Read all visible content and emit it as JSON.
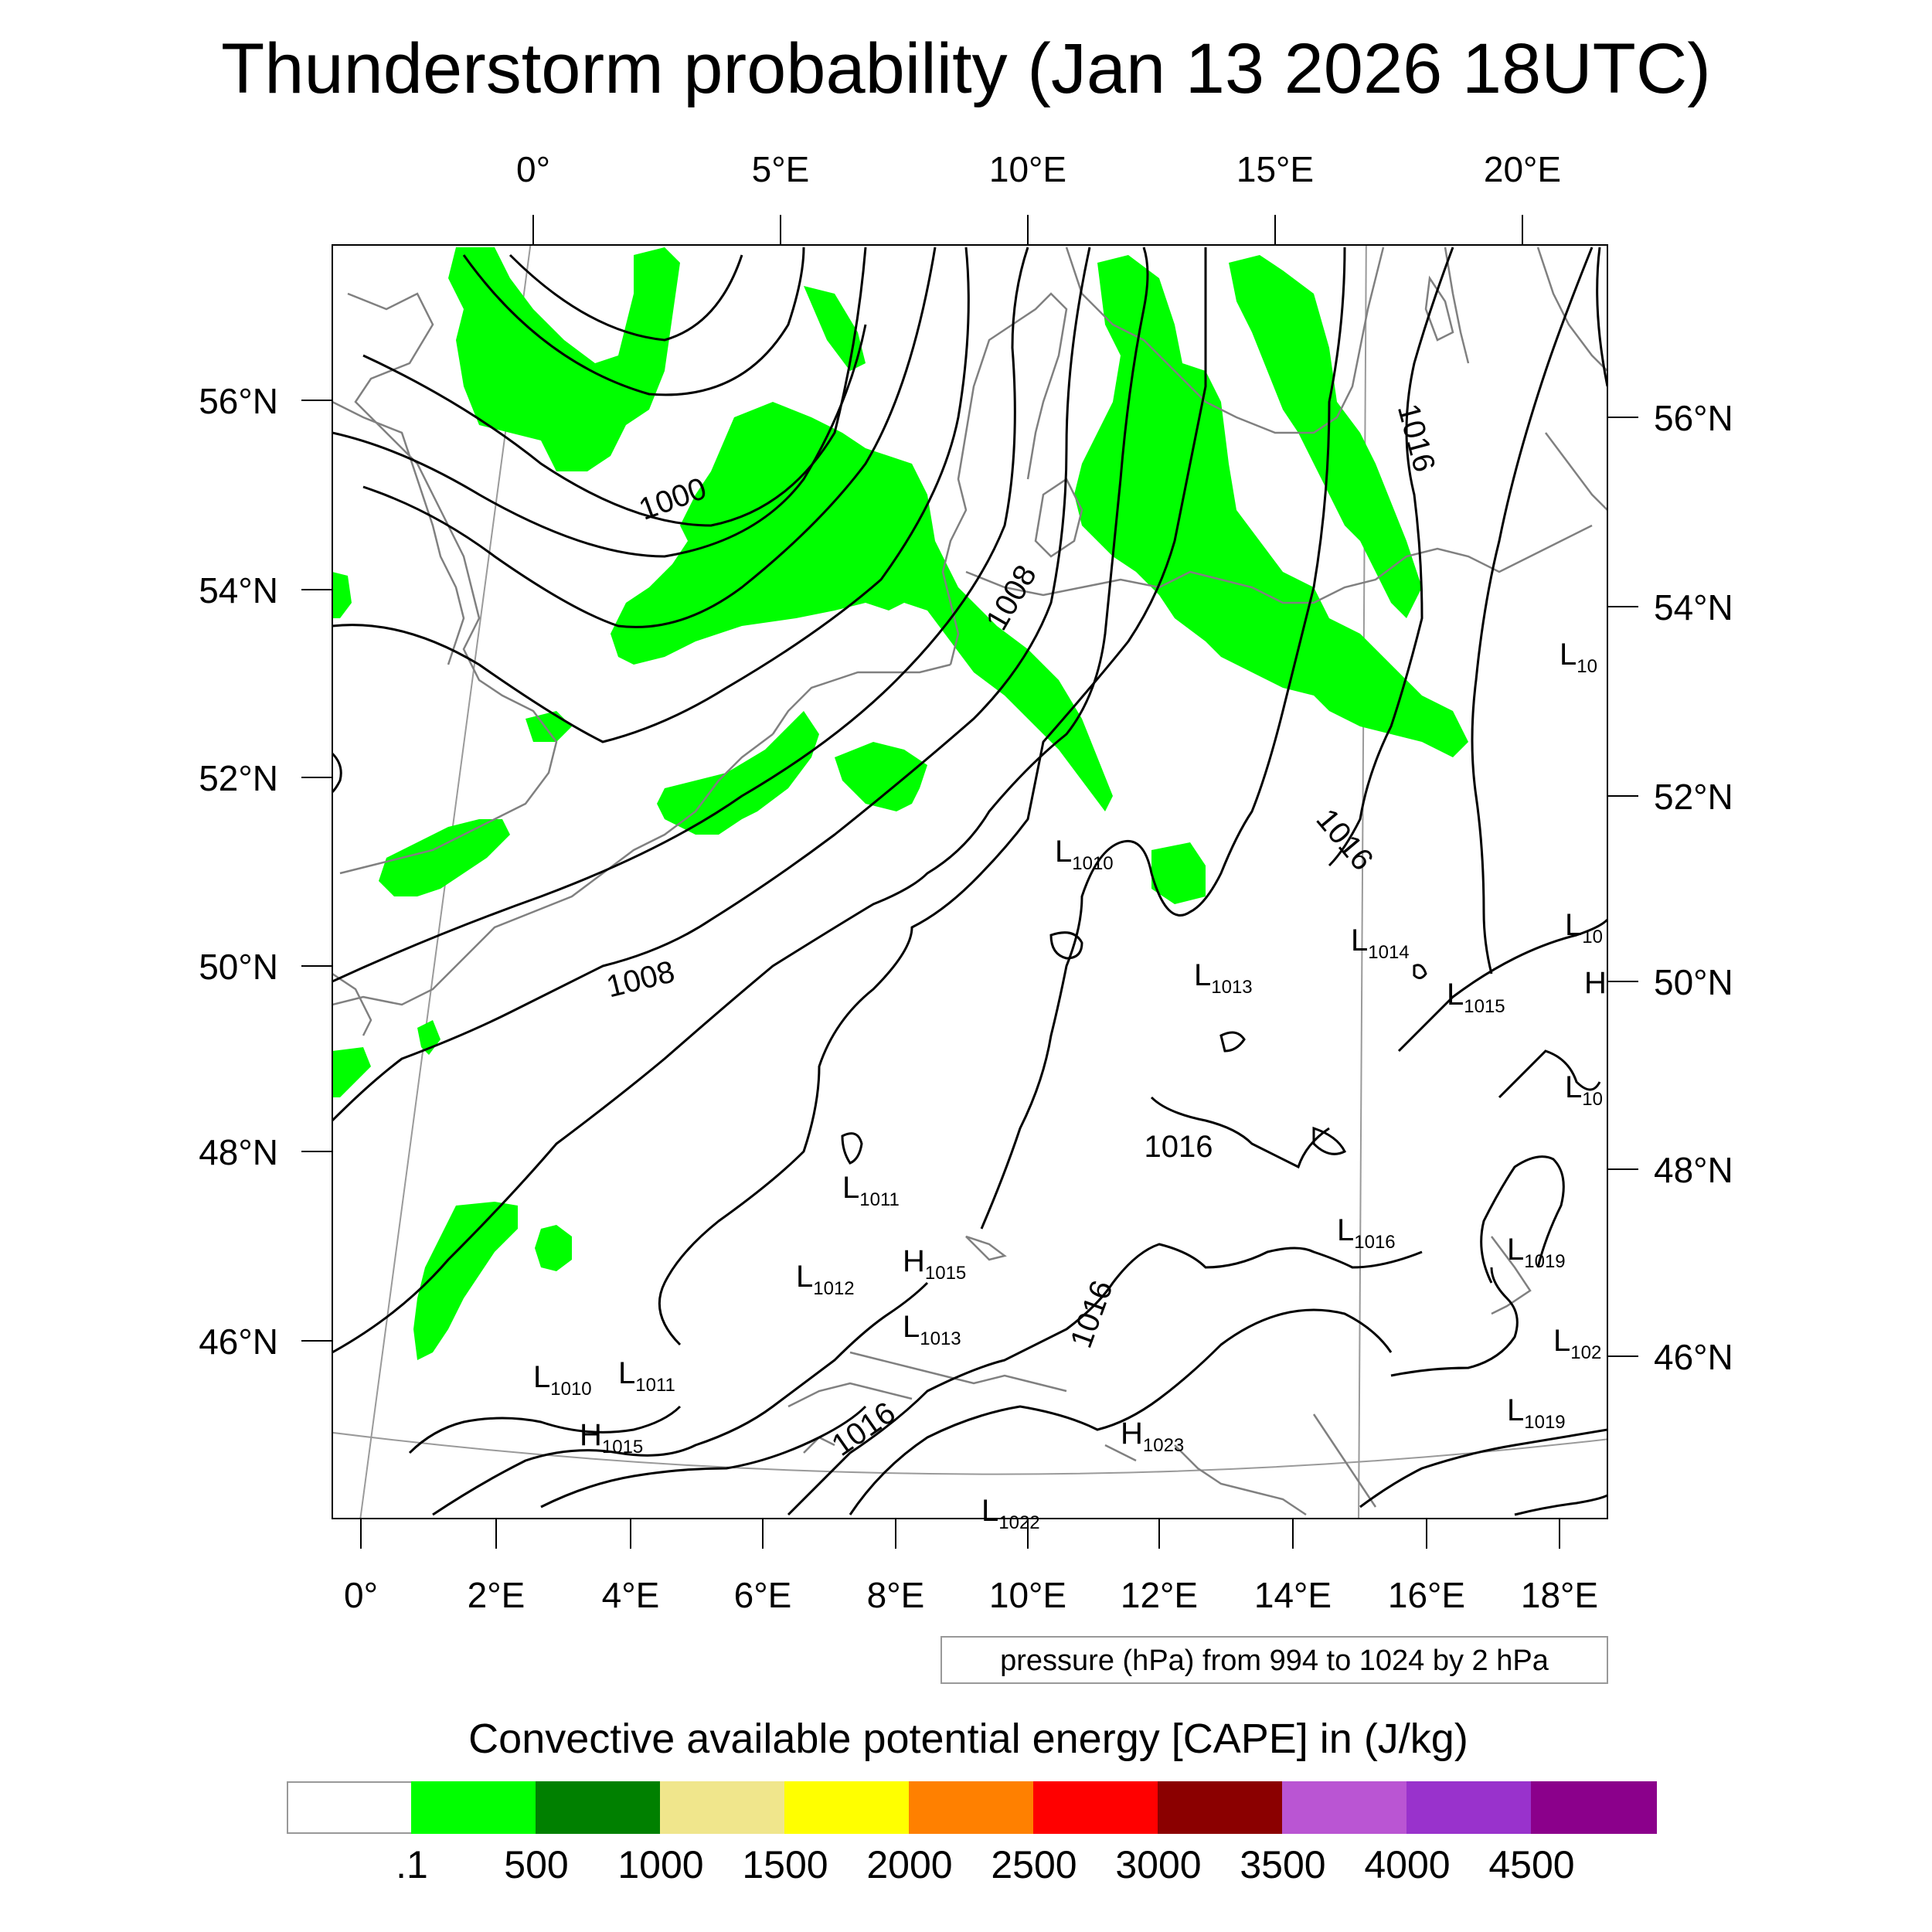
{
  "title": "Thunderstorm probability (Jan 13 2026 18UTC)",
  "top_lon_labels": [
    "0°",
    "5°E",
    "10°E",
    "15°E",
    "20°E"
  ],
  "bottom_lon_labels": [
    "0°",
    "2°E",
    "4°E",
    "6°E",
    "8°E",
    "10°E",
    "12°E",
    "14°E",
    "16°E",
    "18°E"
  ],
  "left_lat_labels": [
    "56°N",
    "54°N",
    "52°N",
    "50°N",
    "48°N",
    "46°N"
  ],
  "right_lat_labels": [
    "56°N",
    "54°N",
    "52°N",
    "50°N",
    "48°N",
    "46°N"
  ],
  "contour_labels": [
    "1000",
    "1008",
    "1008",
    "1016",
    "1016",
    "1016",
    "1016",
    "1016"
  ],
  "pressure_centers": [
    {
      "type": "L",
      "value": "1010"
    },
    {
      "type": "L",
      "value": "1013"
    },
    {
      "type": "L",
      "value": "1014"
    },
    {
      "type": "L",
      "value": "1015"
    },
    {
      "type": "L",
      "value": "1011"
    },
    {
      "type": "L",
      "value": "1012"
    },
    {
      "type": "H",
      "value": "1015"
    },
    {
      "type": "L",
      "value": "1013"
    },
    {
      "type": "L",
      "value": "1016"
    },
    {
      "type": "L",
      "value": "1019"
    },
    {
      "type": "L",
      "value": "1010"
    },
    {
      "type": "L",
      "value": "1011"
    },
    {
      "type": "H",
      "value": "1015"
    },
    {
      "type": "H",
      "value": "1023"
    },
    {
      "type": "L",
      "value": "1019"
    },
    {
      "type": "L",
      "value": "102"
    },
    {
      "type": "L",
      "value": "10"
    },
    {
      "type": "L",
      "value": "10"
    },
    {
      "type": "L",
      "value": "10"
    },
    {
      "type": "H",
      "value": ""
    },
    {
      "type": "L",
      "value": "1022"
    }
  ],
  "pressure_note": "pressure (hPa) from 994 to 1024 by 2 hPa",
  "legend": {
    "title": "Convective available potential energy [CAPE] in (J/kg)",
    "labels": [
      ".1",
      "500",
      "1000",
      "1500",
      "2000",
      "2500",
      "3000",
      "3500",
      "4000",
      "4500"
    ],
    "colors": [
      "#ffffff",
      "#00ff00",
      "#008000",
      "#f0e68c",
      "#ffff00",
      "#ff8000",
      "#ff0000",
      "#8b0000",
      "#ba55d3",
      "#9932cc",
      "#8b008b"
    ]
  }
}
